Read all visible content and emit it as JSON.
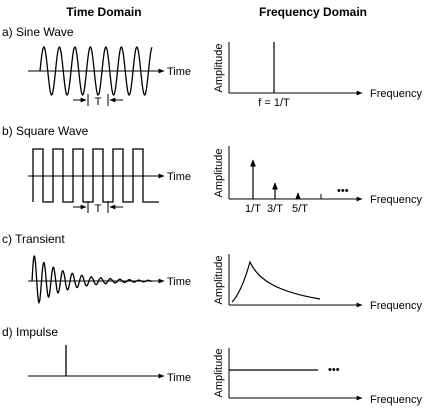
{
  "headers": {
    "time_domain": "Time Domain",
    "frequency_domain": "Frequency Domain"
  },
  "rows": [
    {
      "id": "sine",
      "label": "a) Sine Wave",
      "time_label": "Time",
      "period_label": "T",
      "amp_label": "Amplitude",
      "freq_label": "Frequency",
      "tick_labels": [
        "f = 1/T"
      ]
    },
    {
      "id": "square",
      "label": "b) Square Wave",
      "time_label": "Time",
      "period_label": "T",
      "amp_label": "Amplitude",
      "freq_label": "Frequency",
      "tick_labels": [
        "1/T",
        "3/T",
        "5/T"
      ],
      "ellipsis": "•••"
    },
    {
      "id": "transient",
      "label": "c) Transient",
      "time_label": "Time",
      "amp_label": "Amplitude",
      "freq_label": "Frequency"
    },
    {
      "id": "impulse",
      "label": "d) Impulse",
      "time_label": "Time",
      "amp_label": "Amplitude",
      "freq_label": "Frequency",
      "ellipsis": "•••"
    }
  ]
}
